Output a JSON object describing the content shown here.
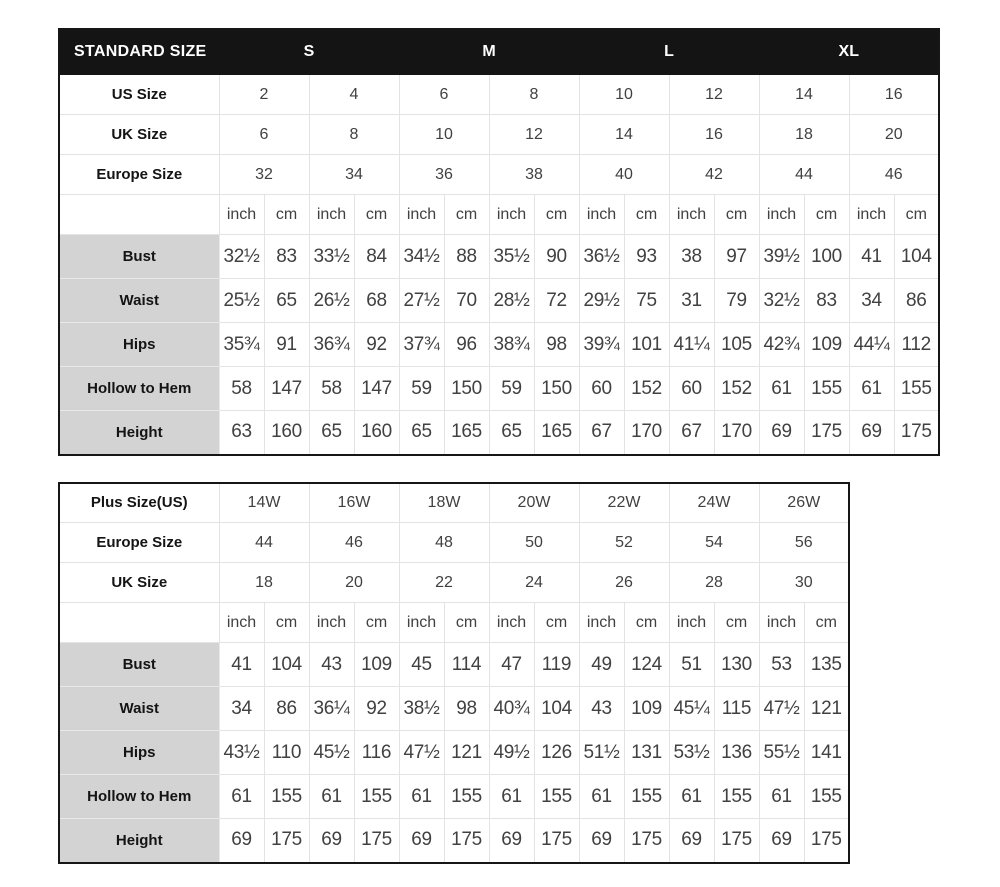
{
  "colors": {
    "header_bg": "#141414",
    "header_text": "#ffffff",
    "label_cell_bg": "#d3d3d3",
    "grid_border": "#e3e3e3",
    "outer_border": "#161616",
    "number_text": "#414141"
  },
  "chart_data": [
    {
      "type": "table",
      "title": "STANDARD SIZE",
      "size_groups": [
        "S",
        "M",
        "L",
        "XL"
      ],
      "units": [
        "inch",
        "cm"
      ],
      "unit_cols": 16,
      "size_rows": [
        {
          "label": "US Size",
          "values": [
            "2",
            "4",
            "6",
            "8",
            "10",
            "12",
            "14",
            "16"
          ]
        },
        {
          "label": "UK Size",
          "values": [
            "6",
            "8",
            "10",
            "12",
            "14",
            "16",
            "18",
            "20"
          ]
        },
        {
          "label": "Europe Size",
          "values": [
            "32",
            "34",
            "36",
            "38",
            "40",
            "42",
            "44",
            "46"
          ]
        }
      ],
      "measure_rows": [
        {
          "label": "Bust",
          "values": [
            "32½",
            "83",
            "33½",
            "84",
            "34½",
            "88",
            "35½",
            "90",
            "36½",
            "93",
            "38",
            "97",
            "39½",
            "100",
            "41",
            "104"
          ]
        },
        {
          "label": "Waist",
          "values": [
            "25½",
            "65",
            "26½",
            "68",
            "27½",
            "70",
            "28½",
            "72",
            "29½",
            "75",
            "31",
            "79",
            "32½",
            "83",
            "34",
            "86"
          ]
        },
        {
          "label": "Hips",
          "values": [
            "35¾",
            "91",
            "36¾",
            "92",
            "37¾",
            "96",
            "38¾",
            "98",
            "39¾",
            "101",
            "41¼",
            "105",
            "42¾",
            "109",
            "44¼",
            "112"
          ]
        },
        {
          "label": "Hollow to Hem",
          "values": [
            "58",
            "147",
            "58",
            "147",
            "59",
            "150",
            "59",
            "150",
            "60",
            "152",
            "60",
            "152",
            "61",
            "155",
            "61",
            "155"
          ]
        },
        {
          "label": "Height",
          "values": [
            "63",
            "160",
            "65",
            "160",
            "65",
            "165",
            "65",
            "165",
            "67",
            "170",
            "67",
            "170",
            "69",
            "175",
            "69",
            "175"
          ]
        }
      ]
    },
    {
      "type": "table",
      "title": "Plus Size(US)",
      "units": [
        "inch",
        "cm"
      ],
      "unit_cols": 14,
      "size_rows": [
        {
          "label": "Plus Size(US)",
          "values": [
            "14W",
            "16W",
            "18W",
            "20W",
            "22W",
            "24W",
            "26W"
          ]
        },
        {
          "label": "Europe Size",
          "values": [
            "44",
            "46",
            "48",
            "50",
            "52",
            "54",
            "56"
          ]
        },
        {
          "label": "UK Size",
          "values": [
            "18",
            "20",
            "22",
            "24",
            "26",
            "28",
            "30"
          ]
        }
      ],
      "measure_rows": [
        {
          "label": "Bust",
          "values": [
            "41",
            "104",
            "43",
            "109",
            "45",
            "114",
            "47",
            "119",
            "49",
            "124",
            "51",
            "130",
            "53",
            "135"
          ]
        },
        {
          "label": "Waist",
          "values": [
            "34",
            "86",
            "36¼",
            "92",
            "38½",
            "98",
            "40¾",
            "104",
            "43",
            "109",
            "45¼",
            "115",
            "47½",
            "121"
          ]
        },
        {
          "label": "Hips",
          "values": [
            "43½",
            "110",
            "45½",
            "116",
            "47½",
            "121",
            "49½",
            "126",
            "51½",
            "131",
            "53½",
            "136",
            "55½",
            "141"
          ]
        },
        {
          "label": "Hollow to Hem",
          "values": [
            "61",
            "155",
            "61",
            "155",
            "61",
            "155",
            "61",
            "155",
            "61",
            "155",
            "61",
            "155",
            "61",
            "155"
          ]
        },
        {
          "label": "Height",
          "values": [
            "69",
            "175",
            "69",
            "175",
            "69",
            "175",
            "69",
            "175",
            "69",
            "175",
            "69",
            "175",
            "69",
            "175"
          ]
        }
      ]
    }
  ]
}
